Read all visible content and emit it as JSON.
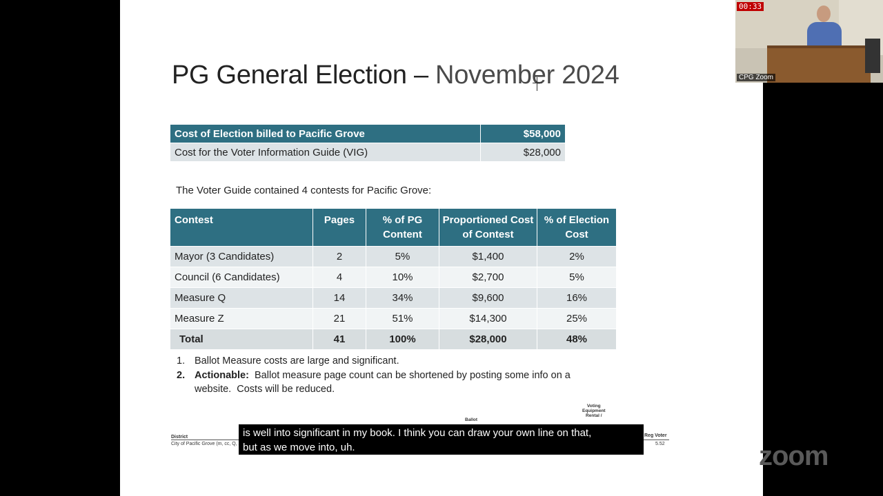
{
  "slide": {
    "title_main": "PG General Election – ",
    "title_tail": "November  2024",
    "cost_rows": [
      {
        "label": "Cost of Election billed to Pacific Grove",
        "amount": "$58,000"
      },
      {
        "label": "Cost  for the Voter Information Guide (VIG)",
        "amount": "$28,000"
      }
    ],
    "guide_intro": "The Voter Guide contained 4 contests for Pacific Grove:",
    "contest_table": {
      "headers": [
        "Contest",
        "Pages",
        "% of PG Content",
        "Proportioned Cost of Contest",
        "% of Election Cost"
      ],
      "rows": [
        [
          "Mayor (3 Candidates)",
          "2",
          "5%",
          "$1,400",
          "2%"
        ],
        [
          "Council (6 Candidates)",
          "4",
          "10%",
          "$2,700",
          "5%"
        ],
        [
          "Measure Q",
          "14",
          "34%",
          "$9,600",
          "16%"
        ],
        [
          "Measure Z",
          "21",
          "51%",
          "$14,300",
          "25%"
        ]
      ],
      "total": [
        "Total",
        "41",
        "100%",
        "$28,000",
        "48%"
      ]
    },
    "notes": [
      {
        "num": "1.",
        "bold": "",
        "text": "Ballot Measure costs are large and significant."
      },
      {
        "num": "2.",
        "bold": "Actionable:",
        "text": "  Ballot measure page count can be shortened by posting some info on a website.  Costs will be reduced."
      }
    ],
    "sheet": {
      "district_label": "District",
      "ballot_label": "Ballot",
      "voting_label_1": "Voting",
      "voting_label_2": "Equipment",
      "voting_label_3": "Rental /",
      "reg_label": "Reg Voter",
      "row_name": "City of Pacific Grove (m, cc, Q, Z)",
      "row_value": "5.52"
    }
  },
  "caption": {
    "line1": "is well into significant in my book. I think you can draw your own line on that,",
    "line2": "but as we move into, uh."
  },
  "video": {
    "timer": "00:33",
    "label": "CPG Zoom"
  },
  "watermark": "zoom"
}
